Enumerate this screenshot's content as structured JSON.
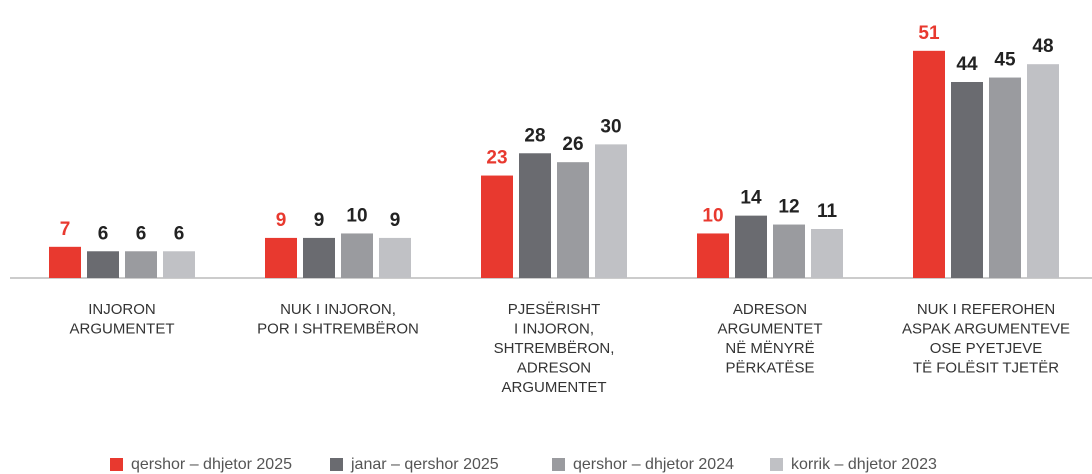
{
  "chart_data": {
    "type": "bar",
    "categories": [
      "INJORON\nARGUMENTET",
      "NUK I INJORON,\nPOR I SHTREMBËRON",
      "PJESËRISHT\nI INJORON,\nSHTREMBËRON,\nADRESON\nARGUMENTET",
      "ADRESON\nARGUMENTET\nNË MËNYRË\nPËRKATËSE",
      "NUK I REFEROHEN\nASPAK ARGUMENTEVE\nOSE PYETJEVE\nTË FOLËSIT TJETËR"
    ],
    "series": [
      {
        "name": "qershor – dhjetor 2025",
        "color": "#e8392f",
        "values": [
          7,
          9,
          23,
          10,
          51
        ]
      },
      {
        "name": "janar – qershor 2025",
        "color": "#6a6b70",
        "values": [
          6,
          9,
          28,
          14,
          44
        ]
      },
      {
        "name": "qershor – dhjetor 2024",
        "color": "#9a9b9f",
        "values": [
          6,
          10,
          26,
          12,
          45
        ]
      },
      {
        "name": "korrik – dhjetor 2023",
        "color": "#c0c1c5",
        "values": [
          6,
          9,
          30,
          11,
          48
        ]
      }
    ],
    "ylim": [
      0,
      55
    ],
    "legend": "bottom"
  }
}
